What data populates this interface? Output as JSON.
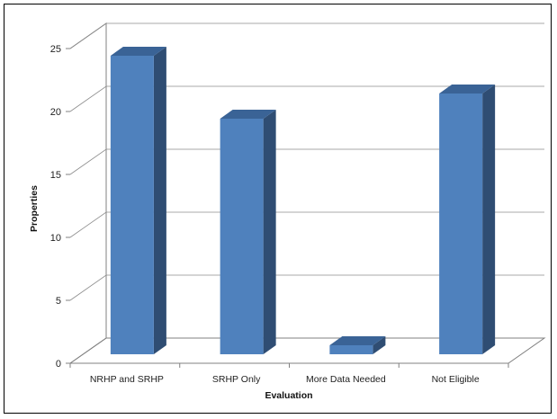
{
  "chart_data": {
    "type": "bar",
    "style": "3d-column",
    "categories": [
      "NRHP and SRHP",
      "SRHP Only",
      "More Data Needed",
      "Not Eligible"
    ],
    "values": [
      24,
      19,
      1,
      21
    ],
    "xlabel": "Evaluation",
    "ylabel": "Properties",
    "ylim": [
      0,
      25
    ],
    "yticks": [
      0,
      5,
      10,
      15,
      20,
      25
    ],
    "grid": true,
    "legend": "none",
    "colors": {
      "bar_front": "#4f81bd",
      "bar_side": "#2f4d73",
      "bar_top": "#3a6396",
      "grid": "#8c8c8c",
      "axis": "#808080"
    }
  }
}
